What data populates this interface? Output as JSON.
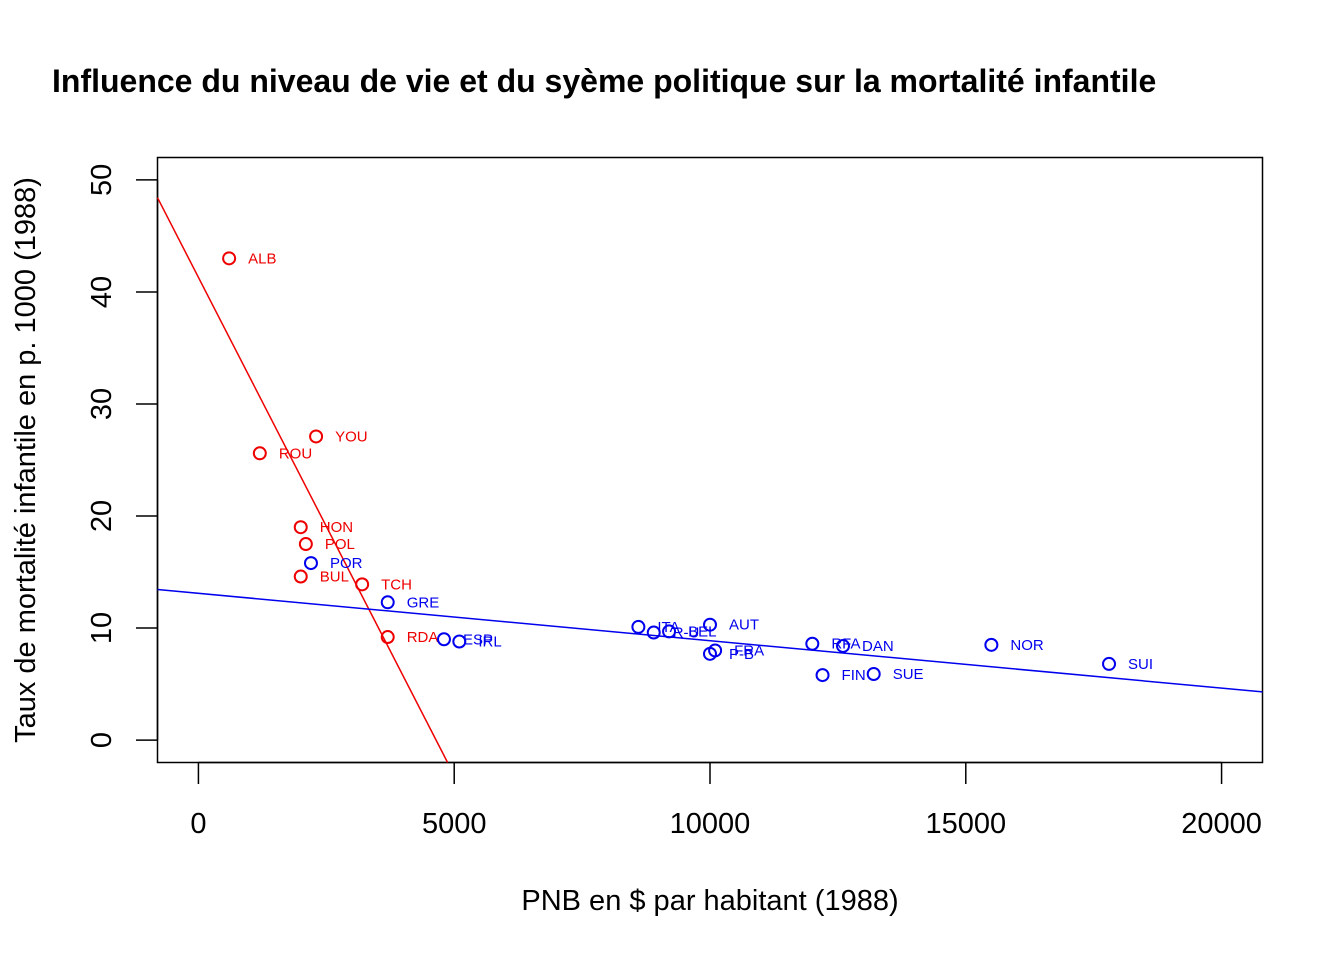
{
  "chart_data": {
    "type": "scatter",
    "title": "Influence du niveau de vie et du syème politique sur la mortalité infantile",
    "xlabel": "PNB en $ par habitant (1988)",
    "ylabel": "Taux de mortalité infantile en p. 1000 (1988)",
    "xlim": [
      -800,
      20800
    ],
    "ylim": [
      -2,
      52
    ],
    "xticks": [
      0,
      5000,
      10000,
      15000,
      20000
    ],
    "yticks": [
      0,
      10,
      20,
      30,
      40,
      50
    ],
    "grid": false,
    "legend": "none",
    "series": [
      {
        "color": "#ee0000",
        "points": [
          {
            "label": "ALB",
            "x": 600,
            "y": 43.0
          },
          {
            "label": "YOU",
            "x": 2300,
            "y": 27.1
          },
          {
            "label": "ROU",
            "x": 1200,
            "y": 25.6
          },
          {
            "label": "HON",
            "x": 2000,
            "y": 19.0
          },
          {
            "label": "POL",
            "x": 2100,
            "y": 17.5
          },
          {
            "label": "BUL",
            "x": 2000,
            "y": 14.6
          },
          {
            "label": "TCH",
            "x": 3200,
            "y": 13.9
          },
          {
            "label": "RDA",
            "x": 3700,
            "y": 9.2
          }
        ],
        "regression": {
          "intercept": 41.3,
          "slope": -0.00889
        }
      },
      {
        "color": "#0000ee",
        "points": [
          {
            "label": "POR",
            "x": 2200,
            "y": 15.8
          },
          {
            "label": "GRE",
            "x": 3700,
            "y": 12.3
          },
          {
            "label": "ESP",
            "x": 4800,
            "y": 9.0
          },
          {
            "label": "IRL",
            "x": 5100,
            "y": 8.8
          },
          {
            "label": "ITA",
            "x": 8600,
            "y": 10.1
          },
          {
            "label": "R-U",
            "x": 8900,
            "y": 9.6
          },
          {
            "label": "BEL",
            "x": 9200,
            "y": 9.7
          },
          {
            "label": "AUT",
            "x": 10000,
            "y": 10.3
          },
          {
            "label": "FRA",
            "x": 10100,
            "y": 8.0
          },
          {
            "label": "P-B",
            "x": 10000,
            "y": 7.7
          },
          {
            "label": "RFA",
            "x": 12000,
            "y": 8.6
          },
          {
            "label": "DAN",
            "x": 12600,
            "y": 8.4
          },
          {
            "label": "FIN",
            "x": 12200,
            "y": 5.8
          },
          {
            "label": "SUE",
            "x": 13200,
            "y": 5.9
          },
          {
            "label": "NOR",
            "x": 15500,
            "y": 8.5
          },
          {
            "label": "SUI",
            "x": 17800,
            "y": 6.8
          }
        ],
        "regression": {
          "intercept": 13.1,
          "slope": -0.000423
        }
      }
    ]
  }
}
